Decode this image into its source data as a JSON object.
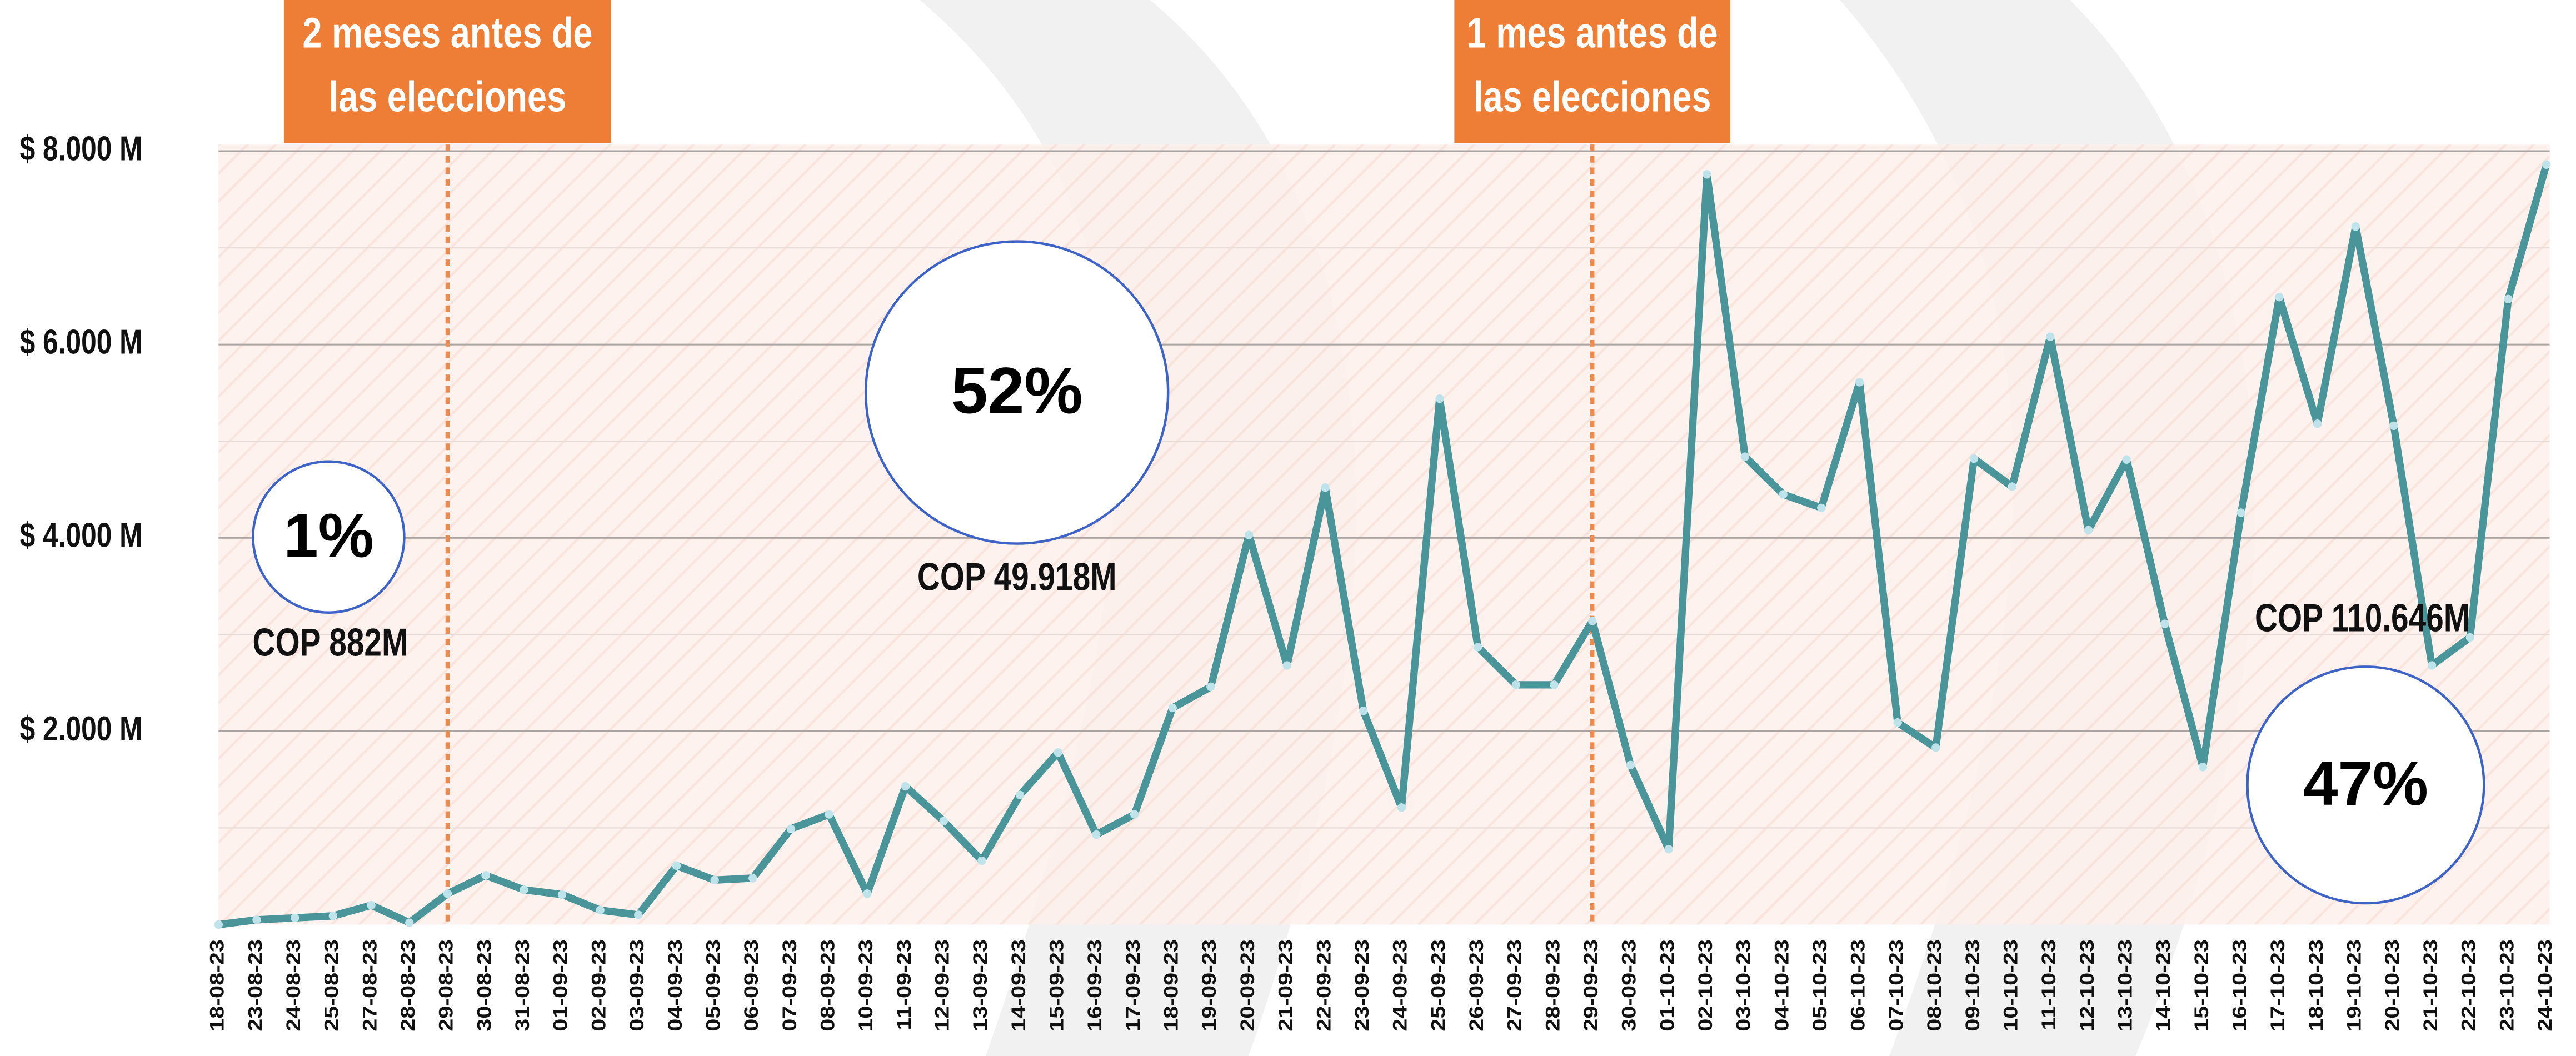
{
  "chart_data": {
    "type": "line",
    "categories": [
      "18-08-23",
      "23-08-23",
      "24-08-23",
      "25-08-23",
      "27-08-23",
      "28-08-23",
      "29-08-23",
      "30-08-23",
      "31-08-23",
      "01-09-23",
      "02-09-23",
      "03-09-23",
      "04-09-23",
      "05-09-23",
      "06-09-23",
      "07-09-23",
      "08-09-23",
      "10-09-23",
      "11-09-23",
      "12-09-23",
      "13-09-23",
      "14-09-23",
      "15-09-23",
      "16-09-23",
      "17-09-23",
      "18-09-23",
      "19-09-23",
      "20-09-23",
      "21-09-23",
      "22-09-23",
      "23-09-23",
      "24-09-23",
      "25-09-23",
      "26-09-23",
      "27-09-23",
      "28-09-23",
      "29-09-23",
      "30-09-23",
      "01-10-23",
      "02-10-23",
      "03-10-23",
      "04-10-23",
      "05-10-23",
      "06-10-23",
      "07-10-23",
      "08-10-23",
      "09-10-23",
      "10-10-23",
      "11-10-23",
      "12-10-23",
      "13-10-23",
      "14-10-23",
      "15-10-23",
      "16-10-23",
      "17-10-23",
      "18-10-23",
      "19-10-23",
      "20-10-23",
      "21-10-23",
      "22-10-23",
      "23-10-23",
      "24-10-23"
    ],
    "values": [
      0,
      50,
      70,
      90,
      200,
      20,
      320,
      510,
      360,
      310,
      150,
      100,
      610,
      460,
      480,
      990,
      1140,
      320,
      1430,
      1070,
      660,
      1340,
      1780,
      930,
      1140,
      2240,
      2460,
      4030,
      2680,
      4520,
      2210,
      1210,
      5440,
      2870,
      2480,
      2480,
      3140,
      1650,
      780,
      7760,
      4840,
      4450,
      4310,
      5610,
      2090,
      1830,
      4820,
      4530,
      6080,
      4080,
      4810,
      3110,
      1630,
      4260,
      6490,
      5180,
      7220,
      5160,
      2680,
      2970,
      6470,
      7860
    ],
    "color": "#4a9599",
    "ylim": [
      0,
      8000
    ],
    "yticks": [
      {
        "value": 2000,
        "label": "$ 2.000 M"
      },
      {
        "value": 4000,
        "label": "$ 4.000 M"
      },
      {
        "value": 6000,
        "label": "$ 6.000 M"
      },
      {
        "value": 8000,
        "label": "$ 8.000 M"
      }
    ],
    "grid": true,
    "markers": [
      {
        "x": "29-08-23",
        "text": [
          "2 meses antes de",
          "las elecciones"
        ]
      },
      {
        "x": "29-09-23",
        "text": [
          "1 mes antes de",
          "las elecciones"
        ]
      }
    ],
    "bubbles": [
      {
        "label": "1%",
        "text": "COP 882M"
      },
      {
        "label": "52%",
        "text": "COP 49.918M"
      },
      {
        "label": "47%",
        "text": "COP 110.646M"
      }
    ]
  }
}
